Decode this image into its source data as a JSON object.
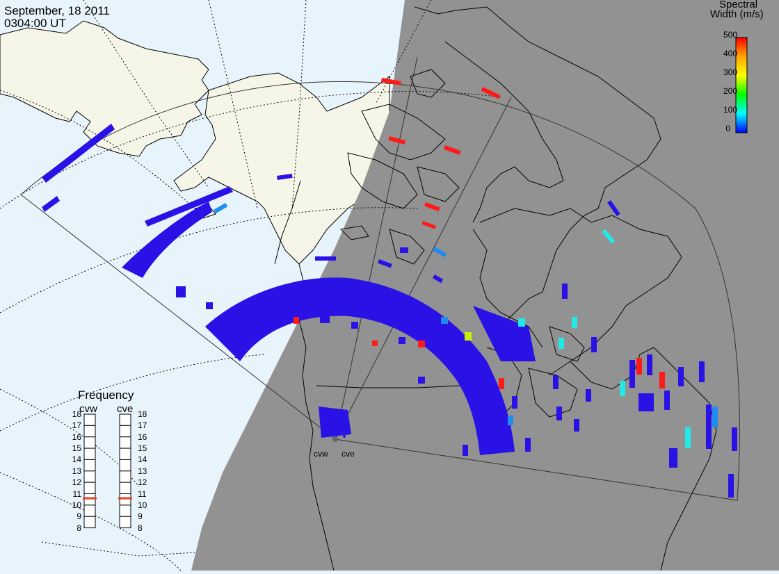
{
  "header": {
    "date": "September, 18 2011",
    "time": "0304:00 UT"
  },
  "colorbar": {
    "title_line1": "Spectral",
    "title_line2": "Width (m/s)",
    "ticks": [
      "500",
      "400",
      "300",
      "200",
      "100",
      "0"
    ],
    "gradient_colors": [
      "#ff0000",
      "#ffa500",
      "#ffff00",
      "#00ff00",
      "#00ffff",
      "#0000ff"
    ]
  },
  "radars": {
    "west_label": "cvw",
    "east_label": "cve"
  },
  "frequency_panel": {
    "title": "Frequency",
    "col_left": "cvw",
    "col_right": "cve",
    "ticks": [
      "18",
      "17",
      "16",
      "15",
      "14",
      "13",
      "12",
      "11",
      "10",
      "9",
      "8"
    ],
    "cvw_value_mhz": 10.6,
    "cve_value_mhz": 10.6,
    "marker_color": "#e8401c"
  },
  "colors": {
    "ocean": "#e8f4fc",
    "land": "#f6f6e8",
    "night_shade": "#929292",
    "scatter_blue": "#2a12e6",
    "scatter_red": "#ff1a1a",
    "scatter_cyan": "#22e8e8",
    "scatter_azure": "#1e8cf0"
  }
}
